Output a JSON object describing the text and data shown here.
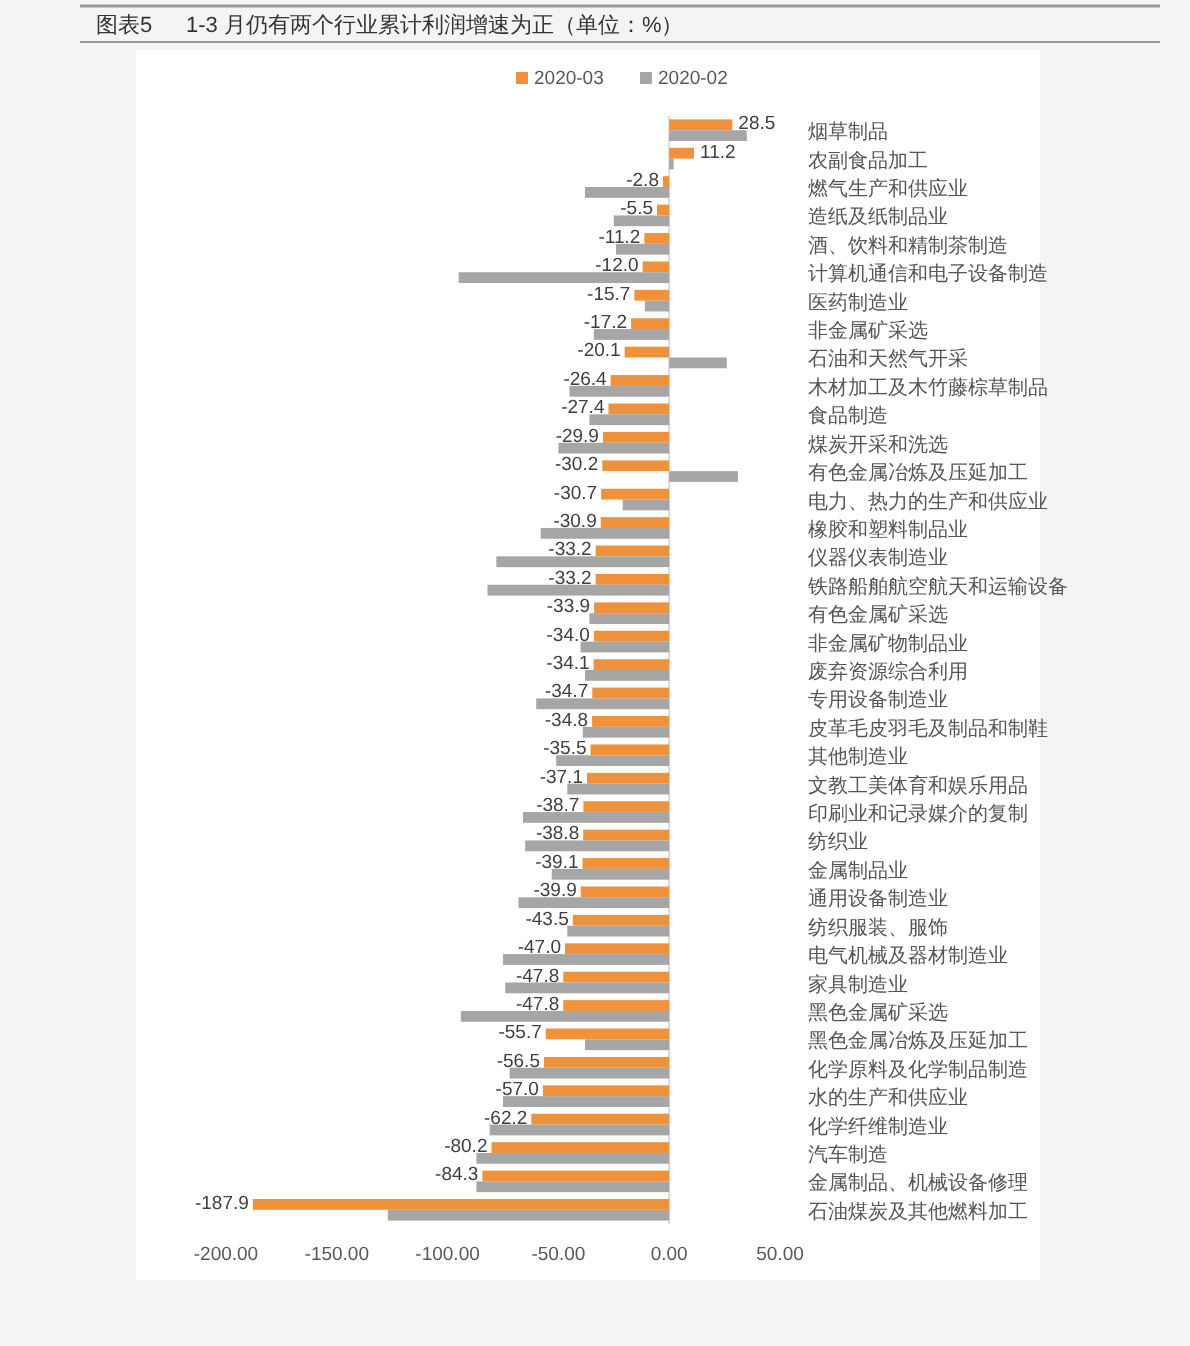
{
  "chart_data": {
    "type": "bar",
    "orientation": "horizontal",
    "title": "图表5",
    "subtitle": "1-3 月仍有两个行业累计利润增速为正（单位：%）",
    "categories": [
      "烟草制品",
      "农副食品加工",
      "燃气生产和供应业",
      "造纸及纸制品业",
      "酒、饮料和精制茶制造",
      "计算机通信和电子设备制造",
      "医药制造业",
      "非金属矿采选",
      "石油和天然气开采",
      "木材加工及木竹藤棕草制品",
      "食品制造",
      "煤炭开采和洗选",
      "有色金属冶炼及压延加工",
      "电力、热力的生产和供应业",
      "橡胶和塑料制品业",
      "仪器仪表制造业",
      "铁路船舶航空航天和运输设备",
      "有色金属矿采选",
      "非金属矿物制品业",
      "废弃资源综合利用",
      "专用设备制造业",
      "皮革毛皮羽毛及制品和制鞋",
      "其他制造业",
      "文教工美体育和娱乐用品",
      "印刷业和记录媒介的复制",
      "纺织业",
      "金属制品业",
      "通用设备制造业",
      "纺织服装、服饰",
      "电气机械及器材制造业",
      "家具制造业",
      "黑色金属矿采选",
      "黑色金属冶炼及压延加工",
      "化学原料及化学制品制造",
      "水的生产和供应业",
      "化学纤维制造业",
      "汽车制造",
      "金属制品、机械设备修理",
      "石油煤炭及其他燃料加工"
    ],
    "series": [
      {
        "name": "2020-03",
        "color": "#f0923b",
        "values": [
          28.5,
          11.2,
          -2.8,
          -5.5,
          -11.2,
          -12.0,
          -15.7,
          -17.2,
          -20.1,
          -26.4,
          -27.4,
          -29.9,
          -30.2,
          -30.7,
          -30.9,
          -33.2,
          -33.2,
          -33.9,
          -34.0,
          -34.1,
          -34.7,
          -34.8,
          -35.5,
          -37.1,
          -38.7,
          -38.8,
          -39.1,
          -39.9,
          -43.5,
          -47.0,
          -47.8,
          -47.8,
          -55.7,
          -56.5,
          -57.0,
          -62.2,
          -80.2,
          -84.3,
          -187.9
        ],
        "value_labels": [
          "28.5",
          "11.2",
          "-2.8",
          "-5.5",
          "-11.2",
          "-12.0",
          "-15.7",
          "-17.2",
          "-20.1",
          "-26.4",
          "-27.4",
          "-29.9",
          "-30.2",
          "-30.7",
          "-30.9",
          "-33.2",
          "-33.2",
          "-33.9",
          "-34.0",
          "-34.1",
          "-34.7",
          "-34.8",
          "-35.5",
          "-37.1",
          "-38.7",
          "-38.8",
          "-39.1",
          "-39.9",
          "-43.5",
          "-47.0",
          "-47.8",
          "-47.8",
          "-55.7",
          "-56.5",
          "-57.0",
          "-62.2",
          "-80.2",
          "-84.3",
          "-187.9"
        ]
      },
      {
        "name": "2020-02",
        "color": "#a6a6a6",
        "values": [
          35,
          2,
          -38,
          -25,
          -24,
          -95,
          -11,
          -34,
          26,
          -45,
          -36,
          -50,
          31,
          -21,
          -58,
          -78,
          -82,
          -36,
          -40,
          -38,
          -60,
          -39,
          -51,
          -46,
          -66,
          -65,
          -53,
          -68,
          -46,
          -75,
          -74,
          -94,
          -38,
          -72,
          -75,
          -81,
          -87,
          -87,
          -127
        ]
      }
    ],
    "xlim": [
      -200,
      50
    ],
    "xticks": [
      {
        "value": -200,
        "label": "-200.00"
      },
      {
        "value": -150,
        "label": "-150.00"
      },
      {
        "value": -100,
        "label": "-100.00"
      },
      {
        "value": -50,
        "label": "-50.00"
      },
      {
        "value": 0,
        "label": "0.00"
      },
      {
        "value": 50,
        "label": "50.00"
      }
    ],
    "legend": "top"
  }
}
